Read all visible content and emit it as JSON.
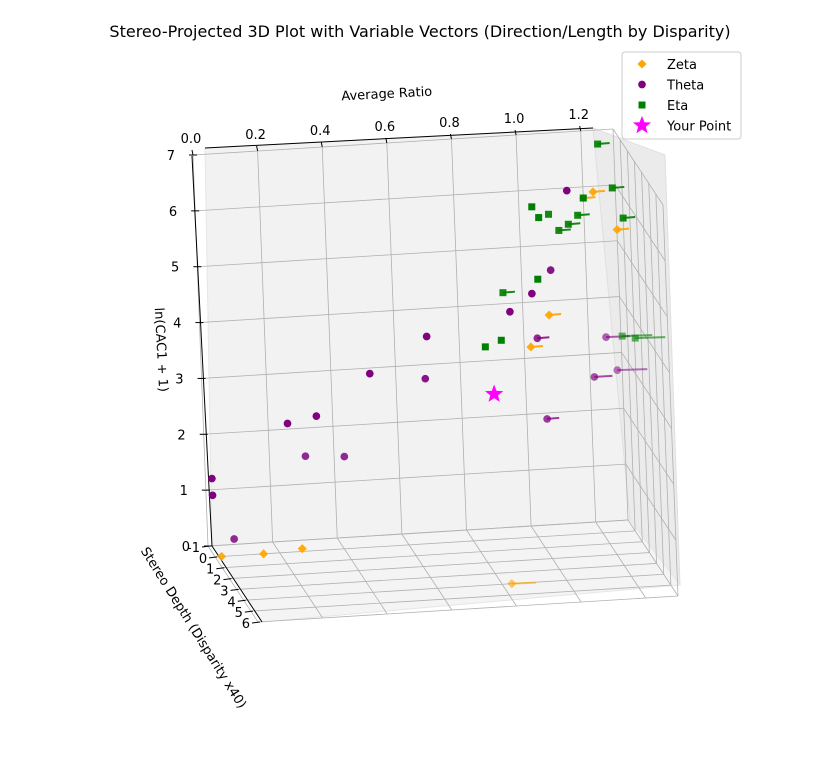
{
  "chart_data": {
    "type": "scatter",
    "projection": "3d",
    "title": "Stereo-Projected 3D Plot with Variable Vectors (Direction/Length by Disparity)",
    "xlabel": "Average Ratio",
    "ylabel": "Stereo Depth (Disparity x40)",
    "zlabel": "ln(CAC1 + 1)",
    "xlim": [
      0.0,
      1.3
    ],
    "ylim": [
      -1,
      6
    ],
    "zlim": [
      0,
      7
    ],
    "x_ticks": [
      "0.0",
      "0.2",
      "0.4",
      "0.6",
      "0.8",
      "1.0",
      "1.2"
    ],
    "y_ticks": [
      "-1",
      "0",
      "1",
      "2",
      "3",
      "4",
      "5",
      "6"
    ],
    "z_ticks": [
      "0",
      "1",
      "2",
      "3",
      "4",
      "5",
      "6",
      "7"
    ],
    "grid": true,
    "legend_position": "top-right",
    "series": [
      {
        "name": "Zeta",
        "color": "#FFA500",
        "marker": "diamond",
        "points": [
          {
            "x": 0.02,
            "y": 0,
            "z": 0.0,
            "vec": 0
          },
          {
            "x": 0.15,
            "y": 0,
            "z": 0.0,
            "vec": 0
          },
          {
            "x": 0.27,
            "y": 0,
            "z": 0.05,
            "vec": 0
          },
          {
            "x": 0.83,
            "y": 4,
            "z": 0.0,
            "vec": 3
          },
          {
            "x": 1.0,
            "y": 0,
            "z": 3.4,
            "vec": 1
          },
          {
            "x": 1.06,
            "y": 0,
            "z": 3.95,
            "vec": 1
          },
          {
            "x": 1.18,
            "y": 0,
            "z": 6.0,
            "vec": 1
          },
          {
            "x": 1.21,
            "y": 0,
            "z": 6.1,
            "vec": 1
          },
          {
            "x": 1.28,
            "y": 0,
            "z": 5.4,
            "vec": 1
          }
        ]
      },
      {
        "name": "Theta",
        "color": "#800080",
        "marker": "circle",
        "points": [
          {
            "x": 0.02,
            "y": -1,
            "z": 1.2,
            "vec": 0
          },
          {
            "x": 0.02,
            "y": -1,
            "z": 0.9,
            "vec": 0
          },
          {
            "x": 0.04,
            "y": 1,
            "z": 0.5,
            "vec": 0
          },
          {
            "x": 0.26,
            "y": -1,
            "z": 2.1,
            "vec": 0
          },
          {
            "x": 0.35,
            "y": -1,
            "z": 2.2,
            "vec": 0
          },
          {
            "x": 0.27,
            "y": 1,
            "z": 1.9,
            "vec": 0
          },
          {
            "x": 0.39,
            "y": 1,
            "z": 1.85,
            "vec": 0
          },
          {
            "x": 0.52,
            "y": -1,
            "z": 2.9,
            "vec": 0
          },
          {
            "x": 0.67,
            "y": 0,
            "z": 2.95,
            "vec": 0
          },
          {
            "x": 0.7,
            "y": -1,
            "z": 3.5,
            "vec": 0
          },
          {
            "x": 0.96,
            "y": -1,
            "z": 3.85,
            "vec": 0
          },
          {
            "x": 1.0,
            "y": 1,
            "z": 3.75,
            "vec": 1
          },
          {
            "x": 1.03,
            "y": -1,
            "z": 4.15,
            "vec": 0
          },
          {
            "x": 1.07,
            "y": 0,
            "z": 4.75,
            "vec": 0
          },
          {
            "x": 1.15,
            "y": -1,
            "z": 5.95,
            "vec": 0
          },
          {
            "x": 1.0,
            "y": 2,
            "z": 2.5,
            "vec": 1
          },
          {
            "x": 1.13,
            "y": 3,
            "z": 3.4,
            "vec": 2
          },
          {
            "x": 1.15,
            "y": 4,
            "z": 4.3,
            "vec": 3
          },
          {
            "x": 1.16,
            "y": 5,
            "z": 3.9,
            "vec": 4
          }
        ]
      },
      {
        "name": "Eta",
        "color": "#008000",
        "marker": "square",
        "points": [
          {
            "x": 0.88,
            "y": -1,
            "z": 3.25,
            "vec": 0
          },
          {
            "x": 0.93,
            "y": -1,
            "z": 3.35,
            "vec": 0
          },
          {
            "x": 0.92,
            "y": 0,
            "z": 4.4,
            "vec": 1
          },
          {
            "x": 1.05,
            "y": -1,
            "z": 4.4,
            "vec": 0
          },
          {
            "x": 1.04,
            "y": -1,
            "z": 5.7,
            "vec": 0
          },
          {
            "x": 1.06,
            "y": -1,
            "z": 5.5,
            "vec": 0
          },
          {
            "x": 1.07,
            "y": 0,
            "z": 5.75,
            "vec": 0
          },
          {
            "x": 1.1,
            "y": 0,
            "z": 5.45,
            "vec": 1
          },
          {
            "x": 1.13,
            "y": 0,
            "z": 5.55,
            "vec": 1
          },
          {
            "x": 1.16,
            "y": 0,
            "z": 5.7,
            "vec": 1
          },
          {
            "x": 1.2,
            "y": -1,
            "z": 5.8,
            "vec": 0
          },
          {
            "x": 1.2,
            "y": 4,
            "z": 4.3,
            "vec": 4
          },
          {
            "x": 1.24,
            "y": 4,
            "z": 4.25,
            "vec": 4
          },
          {
            "x": 1.23,
            "y": 0,
            "z": 6.95,
            "vec": 1
          },
          {
            "x": 1.27,
            "y": 0,
            "z": 6.15,
            "vec": 1
          },
          {
            "x": 1.3,
            "y": 0,
            "z": 5.6,
            "vec": 1
          }
        ]
      },
      {
        "name": "Your Point",
        "color": "#FF00FF",
        "marker": "star",
        "points": [
          {
            "x": 0.86,
            "y": 1,
            "z": 2.8,
            "vec": 0
          }
        ]
      }
    ]
  }
}
